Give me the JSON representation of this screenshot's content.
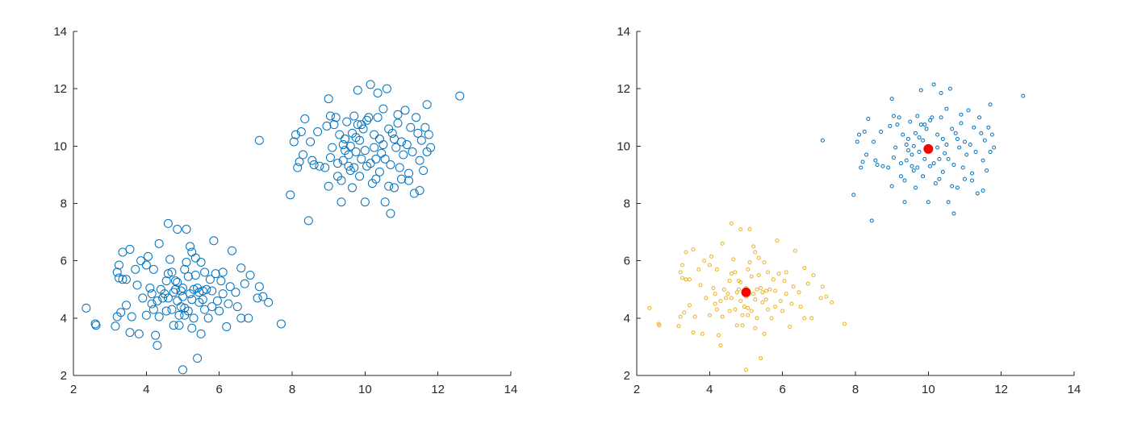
{
  "colors": {
    "cluster_a": "#0072BD",
    "cluster_b": "#EDB120",
    "centroid": "#FF0000",
    "axis": "#262626"
  },
  "chart_data": [
    {
      "type": "scatter",
      "title": "",
      "xlabel": "",
      "ylabel": "",
      "xlim": [
        2,
        14
      ],
      "ylim": [
        2,
        14
      ],
      "xticks": [
        2,
        4,
        6,
        8,
        10,
        12,
        14
      ],
      "yticks": [
        2,
        4,
        6,
        8,
        10,
        12,
        14
      ],
      "xtick_labels": [
        "2",
        "4",
        "6",
        "8",
        "10",
        "12",
        "14"
      ],
      "ytick_labels": [
        "2",
        "4",
        "6",
        "8",
        "10",
        "12",
        "14"
      ],
      "grid": false,
      "legend": "none",
      "series": [
        {
          "marker": "open-circle",
          "color": "#0072BD",
          "points": [
            [
              2.35,
              4.35
            ],
            [
              2.6,
              3.8
            ],
            [
              2.62,
              3.75
            ],
            [
              3.15,
              3.72
            ],
            [
              3.2,
              4.05
            ],
            [
              3.3,
              4.2
            ],
            [
              3.25,
              5.4
            ],
            [
              3.2,
              5.6
            ],
            [
              3.25,
              5.85
            ],
            [
              3.35,
              5.35
            ],
            [
              3.45,
              5.35
            ],
            [
              3.35,
              6.3
            ],
            [
              3.55,
              6.4
            ],
            [
              3.45,
              4.45
            ],
            [
              3.55,
              3.5
            ],
            [
              3.6,
              4.05
            ],
            [
              3.7,
              5.7
            ],
            [
              3.85,
              6.0
            ],
            [
              3.75,
              5.15
            ],
            [
              3.8,
              3.45
            ],
            [
              4.0,
              4.1
            ],
            [
              4.0,
              5.85
            ],
            [
              4.05,
              6.15
            ],
            [
              4.1,
              5.05
            ],
            [
              4.15,
              4.85
            ],
            [
              4.2,
              5.7
            ],
            [
              4.15,
              4.5
            ],
            [
              4.2,
              4.3
            ],
            [
              4.25,
              3.4
            ],
            [
              4.3,
              3.05
            ],
            [
              4.3,
              4.6
            ],
            [
              4.35,
              4.05
            ],
            [
              4.35,
              6.6
            ],
            [
              4.4,
              5.0
            ],
            [
              4.45,
              4.7
            ],
            [
              4.5,
              4.85
            ],
            [
              4.55,
              4.25
            ],
            [
              4.55,
              5.3
            ],
            [
              4.6,
              5.55
            ],
            [
              4.6,
              7.3
            ],
            [
              4.65,
              6.05
            ],
            [
              4.7,
              4.3
            ],
            [
              4.75,
              4.9
            ],
            [
              4.75,
              3.75
            ],
            [
              4.8,
              5.3
            ],
            [
              4.85,
              7.1
            ],
            [
              4.85,
              4.6
            ],
            [
              4.9,
              4.1
            ],
            [
              4.9,
              3.75
            ],
            [
              4.95,
              4.95
            ],
            [
              5.0,
              5.05
            ],
            [
              5.0,
              4.75
            ],
            [
              5.05,
              5.7
            ],
            [
              5.05,
              4.35
            ],
            [
              5.1,
              7.1
            ],
            [
              5.1,
              5.95
            ],
            [
              5.15,
              4.25
            ],
            [
              5.2,
              4.85
            ],
            [
              5.2,
              6.5
            ],
            [
              5.25,
              6.3
            ],
            [
              5.25,
              3.65
            ],
            [
              5.3,
              5.0
            ],
            [
              5.3,
              4.0
            ],
            [
              5.35,
              5.5
            ],
            [
              5.35,
              6.1
            ],
            [
              5.4,
              5.05
            ],
            [
              5.4,
              2.6
            ],
            [
              5.45,
              4.55
            ],
            [
              5.5,
              5.95
            ],
            [
              5.5,
              3.45
            ],
            [
              5.55,
              4.65
            ],
            [
              5.6,
              4.3
            ],
            [
              5.6,
              5.6
            ],
            [
              5.65,
              5.0
            ],
            [
              5.7,
              4.0
            ],
            [
              5.75,
              5.35
            ],
            [
              5.8,
              4.95
            ],
            [
              5.85,
              6.7
            ],
            [
              5.9,
              5.55
            ],
            [
              5.95,
              4.6
            ],
            [
              6.0,
              4.25
            ],
            [
              6.05,
              5.3
            ],
            [
              6.1,
              4.85
            ],
            [
              6.2,
              3.7
            ],
            [
              6.25,
              4.5
            ],
            [
              6.3,
              5.1
            ],
            [
              6.35,
              6.35
            ],
            [
              6.45,
              4.9
            ],
            [
              6.5,
              4.4
            ],
            [
              6.6,
              5.75
            ],
            [
              6.6,
              4.0
            ],
            [
              6.7,
              5.2
            ],
            [
              6.8,
              4.0
            ],
            [
              6.85,
              5.5
            ],
            [
              7.05,
              4.7
            ],
            [
              7.1,
              5.1
            ],
            [
              7.2,
              4.75
            ],
            [
              7.35,
              4.55
            ],
            [
              7.7,
              3.8
            ],
            [
              5.0,
              2.2
            ],
            [
              4.8,
              5.0
            ],
            [
              5.15,
              5.45
            ],
            [
              4.95,
              4.4
            ],
            [
              5.55,
              4.95
            ],
            [
              4.7,
              5.6
            ],
            [
              5.45,
              4.9
            ],
            [
              4.6,
              4.7
            ],
            [
              5.05,
              4.1
            ],
            [
              4.85,
              5.25
            ],
            [
              5.25,
              4.65
            ],
            [
              6.1,
              5.6
            ],
            [
              5.8,
              4.4
            ],
            [
              3.9,
              4.7
            ],
            [
              7.1,
              10.2
            ],
            [
              7.95,
              8.3
            ],
            [
              8.05,
              10.15
            ],
            [
              8.1,
              10.4
            ],
            [
              8.15,
              9.25
            ],
            [
              8.2,
              9.45
            ],
            [
              8.25,
              10.5
            ],
            [
              8.3,
              9.7
            ],
            [
              8.35,
              10.95
            ],
            [
              8.45,
              7.4
            ],
            [
              8.5,
              10.15
            ],
            [
              8.55,
              9.5
            ],
            [
              8.6,
              9.35
            ],
            [
              8.7,
              10.5
            ],
            [
              8.75,
              9.3
            ],
            [
              8.9,
              9.25
            ],
            [
              8.95,
              10.7
            ],
            [
              9.0,
              11.65
            ],
            [
              9.0,
              8.6
            ],
            [
              9.05,
              11.05
            ],
            [
              9.05,
              9.6
            ],
            [
              9.1,
              9.95
            ],
            [
              9.15,
              10.75
            ],
            [
              9.2,
              11.0
            ],
            [
              9.25,
              8.95
            ],
            [
              9.25,
              9.4
            ],
            [
              9.3,
              10.4
            ],
            [
              9.35,
              8.8
            ],
            [
              9.35,
              8.05
            ],
            [
              9.4,
              9.5
            ],
            [
              9.45,
              10.25
            ],
            [
              9.45,
              9.85
            ],
            [
              9.5,
              10.85
            ],
            [
              9.55,
              9.3
            ],
            [
              9.55,
              9.7
            ],
            [
              9.6,
              10.0
            ],
            [
              9.65,
              10.45
            ],
            [
              9.65,
              8.55
            ],
            [
              9.7,
              11.05
            ],
            [
              9.7,
              9.25
            ],
            [
              9.75,
              9.8
            ],
            [
              9.8,
              10.75
            ],
            [
              9.8,
              11.95
            ],
            [
              9.85,
              8.95
            ],
            [
              9.85,
              10.2
            ],
            [
              9.9,
              9.55
            ],
            [
              9.95,
              10.6
            ],
            [
              10.0,
              9.85
            ],
            [
              10.0,
              8.05
            ],
            [
              10.05,
              10.9
            ],
            [
              10.1,
              11.0
            ],
            [
              10.15,
              9.4
            ],
            [
              10.15,
              12.15
            ],
            [
              10.2,
              8.7
            ],
            [
              10.25,
              10.4
            ],
            [
              10.25,
              9.95
            ],
            [
              10.3,
              8.85
            ],
            [
              10.35,
              11.0
            ],
            [
              10.35,
              11.85
            ],
            [
              10.4,
              9.1
            ],
            [
              10.4,
              10.25
            ],
            [
              10.45,
              9.75
            ],
            [
              10.5,
              11.3
            ],
            [
              10.55,
              8.05
            ],
            [
              10.55,
              9.55
            ],
            [
              10.6,
              12.0
            ],
            [
              10.65,
              10.6
            ],
            [
              10.65,
              8.6
            ],
            [
              10.7,
              9.35
            ],
            [
              10.7,
              7.65
            ],
            [
              10.75,
              10.45
            ],
            [
              10.8,
              8.55
            ],
            [
              10.85,
              9.95
            ],
            [
              10.9,
              11.1
            ],
            [
              10.9,
              10.8
            ],
            [
              10.95,
              9.25
            ],
            [
              11.0,
              10.15
            ],
            [
              11.0,
              8.85
            ],
            [
              11.05,
              9.7
            ],
            [
              11.1,
              11.25
            ],
            [
              11.15,
              10.05
            ],
            [
              11.2,
              8.8
            ],
            [
              11.2,
              9.05
            ],
            [
              11.25,
              10.65
            ],
            [
              11.3,
              9.8
            ],
            [
              11.35,
              8.35
            ],
            [
              11.4,
              11.0
            ],
            [
              11.45,
              10.45
            ],
            [
              11.5,
              8.45
            ],
            [
              11.5,
              9.5
            ],
            [
              11.55,
              10.2
            ],
            [
              11.6,
              9.15
            ],
            [
              11.65,
              10.65
            ],
            [
              11.7,
              11.45
            ],
            [
              11.7,
              9.8
            ],
            [
              11.75,
              10.4
            ],
            [
              11.8,
              9.95
            ],
            [
              12.6,
              11.75
            ],
            [
              9.6,
              9.15
            ],
            [
              10.05,
              9.3
            ],
            [
              9.9,
              10.75
            ],
            [
              10.5,
              10.05
            ],
            [
              9.4,
              10.05
            ],
            [
              10.3,
              9.55
            ],
            [
              9.75,
              10.3
            ],
            [
              10.8,
              10.25
            ]
          ]
        }
      ]
    },
    {
      "type": "scatter",
      "title": "",
      "xlabel": "",
      "ylabel": "",
      "xlim": [
        2,
        14
      ],
      "ylim": [
        2,
        14
      ],
      "xticks": [
        2,
        4,
        6,
        8,
        10,
        12,
        14
      ],
      "yticks": [
        2,
        4,
        6,
        8,
        10,
        12,
        14
      ],
      "xtick_labels": [
        "2",
        "4",
        "6",
        "8",
        "10",
        "12",
        "14"
      ],
      "ytick_labels": [
        "2",
        "4",
        "6",
        "8",
        "10",
        "12",
        "14"
      ],
      "grid": false,
      "legend": "none",
      "series": [
        {
          "marker": "small-open-circle",
          "color": "#0072BD",
          "cluster": 1
        },
        {
          "marker": "small-open-circle",
          "color": "#EDB120",
          "cluster": 0
        },
        {
          "marker": "filled-circle",
          "color": "#FF0000",
          "points": [
            [
              5.0,
              4.9
            ],
            [
              10.0,
              9.9
            ]
          ]
        }
      ]
    }
  ]
}
